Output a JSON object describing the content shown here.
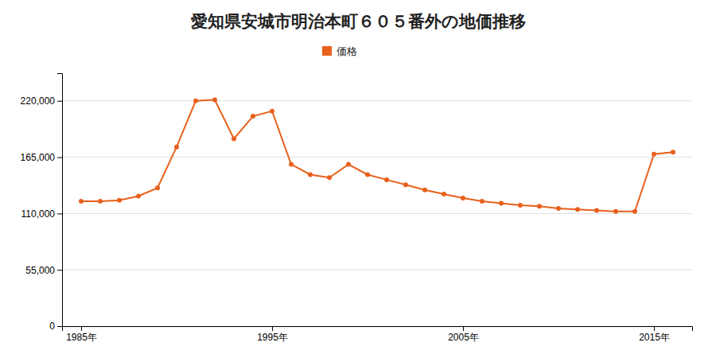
{
  "chart_data": {
    "type": "line",
    "title": "愛知県安城市明治本町６０５番外の地価推移",
    "x": [
      1985,
      1986,
      1987,
      1988,
      1989,
      1990,
      1991,
      1992,
      1993,
      1994,
      1995,
      1996,
      1997,
      1998,
      1999,
      2000,
      2001,
      2002,
      2003,
      2004,
      2005,
      2006,
      2007,
      2008,
      2009,
      2010,
      2011,
      2012,
      2013,
      2014,
      2015,
      2016
    ],
    "series": [
      {
        "name": "価格",
        "color": "#e8601c",
        "marker": "circle",
        "values": [
          122000,
          122000,
          123000,
          127000,
          135000,
          175000,
          220000,
          221000,
          183000,
          205000,
          210000,
          158000,
          148000,
          145000,
          158000,
          148000,
          143000,
          138000,
          133000,
          129000,
          125000,
          122000,
          120000,
          118000,
          117000,
          115000,
          114000,
          113000,
          112000,
          112000,
          168000,
          170000
        ]
      }
    ],
    "xlim": [
      1984,
      2017
    ],
    "xticks": [
      {
        "value": 1985,
        "label": "1985年"
      },
      {
        "value": 1995,
        "label": "1995年"
      },
      {
        "value": 2005,
        "label": "2005年"
      },
      {
        "value": 2015,
        "label": "2015年"
      }
    ],
    "ylim": [
      0,
      247000
    ],
    "yticks": [
      0,
      {
        "value": 55000,
        "label": "55,000"
      },
      {
        "value": 110000,
        "label": "110,000"
      },
      {
        "value": 165000,
        "label": "165,000"
      },
      {
        "value": 220000,
        "label": "220,000"
      }
    ],
    "grid": true,
    "legend": "top"
  }
}
